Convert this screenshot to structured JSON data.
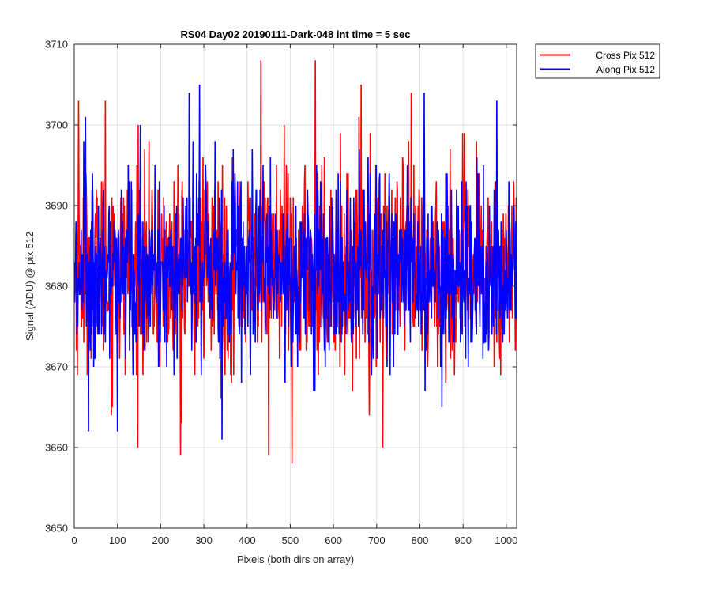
{
  "chart_data": {
    "type": "line",
    "title": "RS04 Day02 20190111-Dark-048 int time = 5 sec",
    "xlabel": "Pixels (both dirs on array)",
    "ylabel": "Signal (ADU) @ pix 512",
    "xlim": [
      0,
      1024
    ],
    "ylim": [
      3650,
      3710
    ],
    "xticks": [
      0,
      100,
      200,
      300,
      400,
      500,
      600,
      700,
      800,
      900,
      1000
    ],
    "yticks": [
      3650,
      3660,
      3670,
      3680,
      3690,
      3700,
      3710
    ],
    "grid": true,
    "legend_position": "outside top-right",
    "series": [
      {
        "name": "Cross Pix 512",
        "color": "#ff0000",
        "x_start": 1,
        "x_step": 1,
        "mean": 3682,
        "std": 6.2,
        "min": 3658,
        "max": 3708,
        "extremes": [
          {
            "x": 10,
            "y": 3703
          },
          {
            "x": 72,
            "y": 3703
          },
          {
            "x": 148,
            "y": 3700
          },
          {
            "x": 246,
            "y": 3659
          },
          {
            "x": 432,
            "y": 3708
          },
          {
            "x": 450,
            "y": 3659
          },
          {
            "x": 504,
            "y": 3658
          },
          {
            "x": 558,
            "y": 3708
          },
          {
            "x": 664,
            "y": 3705
          },
          {
            "x": 714,
            "y": 3660
          },
          {
            "x": 780,
            "y": 3704
          }
        ]
      },
      {
        "name": "Along Pix 512",
        "color": "#0000ff",
        "x_start": 1,
        "x_step": 1,
        "mean": 3682,
        "std": 5.8,
        "min": 3661,
        "max": 3705,
        "extremes": [
          {
            "x": 26,
            "y": 3701
          },
          {
            "x": 33,
            "y": 3662
          },
          {
            "x": 100,
            "y": 3662
          },
          {
            "x": 266,
            "y": 3704
          },
          {
            "x": 290,
            "y": 3705
          },
          {
            "x": 342,
            "y": 3661
          },
          {
            "x": 810,
            "y": 3704
          },
          {
            "x": 978,
            "y": 3703
          }
        ]
      }
    ]
  }
}
